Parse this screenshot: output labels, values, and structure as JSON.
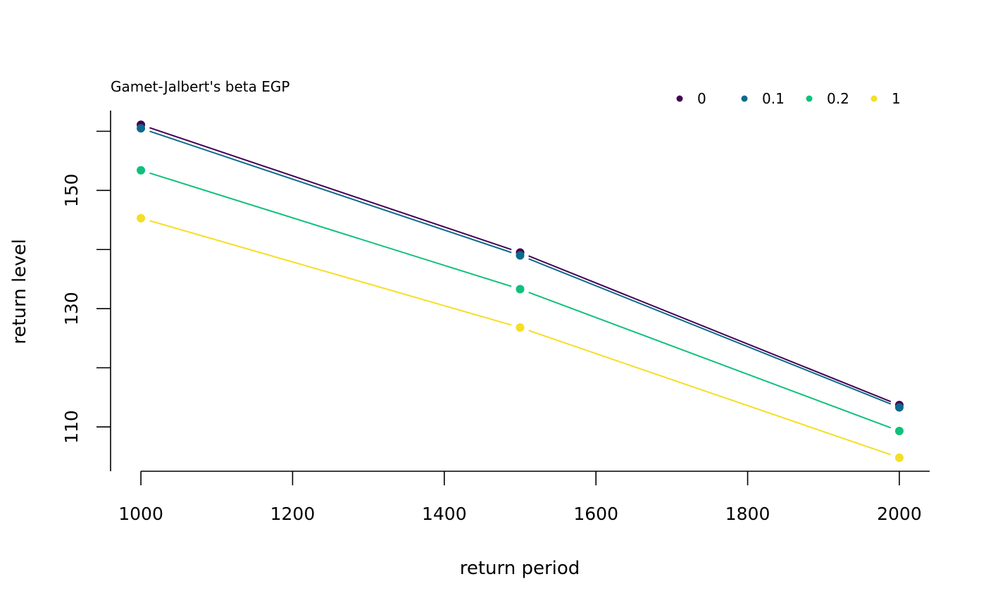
{
  "chart_data": {
    "type": "line",
    "title": "Gamet-Jalbert's beta EGP",
    "xlabel": "return period",
    "ylabel": "return level",
    "x": [
      1000,
      1500,
      2000
    ],
    "xlim": [
      960,
      2040
    ],
    "ylim": [
      102.5,
      163.5
    ],
    "x_ticks": [
      1000,
      1200,
      1400,
      1600,
      1800,
      2000
    ],
    "y_ticks": [
      110,
      120,
      130,
      140,
      150,
      160
    ],
    "y_tick_labels": [
      "110",
      "",
      "130",
      "",
      "150",
      ""
    ],
    "legend_position": "top-right",
    "grid": false,
    "series": [
      {
        "name": "0",
        "color": "#440154",
        "values": [
          161.1,
          139.5,
          113.7
        ]
      },
      {
        "name": "0.1",
        "color": "#0d6a8c",
        "values": [
          160.5,
          139.0,
          113.3
        ]
      },
      {
        "name": "0.2",
        "color": "#10c07c",
        "values": [
          153.4,
          133.3,
          109.3
        ]
      },
      {
        "name": "1",
        "color": "#f5de26",
        "values": [
          145.3,
          126.8,
          104.8
        ]
      }
    ]
  }
}
